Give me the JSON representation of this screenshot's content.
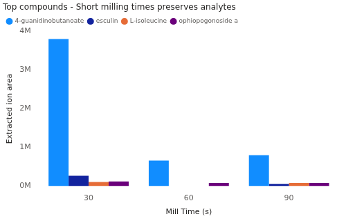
{
  "chart_data": {
    "type": "bar",
    "title": "Top compounds - Short milling times preserves analytes",
    "x_label": "Mill Time (s)",
    "y_label": "Extracted ion area",
    "categories": [
      "30",
      "60",
      "90"
    ],
    "series": [
      {
        "name": "4-guanidinobutanoate",
        "color": "#118DFF",
        "values": [
          3800000,
          660000,
          800000
        ]
      },
      {
        "name": "esculin",
        "color": "#12239E",
        "values": [
          270000,
          null,
          60000
        ]
      },
      {
        "name": "L-isoleucine",
        "color": "#E66C37",
        "values": [
          110000,
          null,
          80000
        ]
      },
      {
        "name": "ophiopogonoside a",
        "color": "#6B007B",
        "values": [
          120000,
          80000,
          80000
        ]
      }
    ],
    "ylim": [
      0,
      4000000
    ],
    "yticks": [
      {
        "value": 0,
        "label": "0M"
      },
      {
        "value": 1000000,
        "label": "1M"
      },
      {
        "value": 2000000,
        "label": "2M"
      },
      {
        "value": 3000000,
        "label": "3M"
      },
      {
        "value": 4000000,
        "label": "4M"
      }
    ],
    "grid": false,
    "legend": "top-left"
  }
}
